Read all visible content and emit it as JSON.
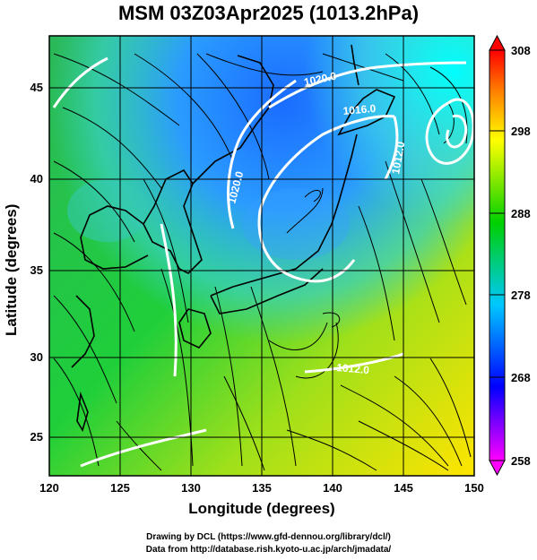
{
  "title": "MSM 03Z03Apr2025 (1013.2hPa)",
  "xlabel": "Longitude (degrees)",
  "ylabel": "Latitude  (degrees)",
  "credits": [
    "Drawing by DCL (https://www.gfd-dennou.org/library/dcl/)",
    "Data from http://database.rish.kyoto-u.ac.jp/arch/jmadata/"
  ],
  "chart_data": {
    "type": "heatmap",
    "title": "MSM 03Z03Apr2025 (1013.2hPa)",
    "xlabel": "Longitude (degrees)",
    "ylabel": "Latitude  (degrees)",
    "xlim": [
      120,
      150
    ],
    "ylim": [
      22.4,
      47.6
    ],
    "x_ticks": [
      120,
      125,
      130,
      135,
      140,
      145,
      150
    ],
    "y_ticks": [
      25,
      30,
      35,
      40,
      45
    ],
    "grid": true,
    "colorbar": {
      "min": 258,
      "max": 308,
      "ticks": [
        258,
        268,
        278,
        288,
        298,
        308
      ],
      "colors": [
        "#ff00ff",
        "#0000ff",
        "#00c8ff",
        "#00d000",
        "#ffff00",
        "#ff8000",
        "#ff0000"
      ]
    },
    "isobar_labels": [
      {
        "text": "1020.0",
        "lon": 138.8,
        "lat": 45.6
      },
      {
        "text": "1016.0",
        "lon": 141.1,
        "lat": 43.9
      },
      {
        "text": "1020.0",
        "lon": 131.4,
        "lat": 40.2
      },
      {
        "text": "1012.0",
        "lon": 142.6,
        "lat": 40.8
      },
      {
        "text": "1012.0",
        "lon": 140.0,
        "lat": 29.4
      }
    ]
  }
}
